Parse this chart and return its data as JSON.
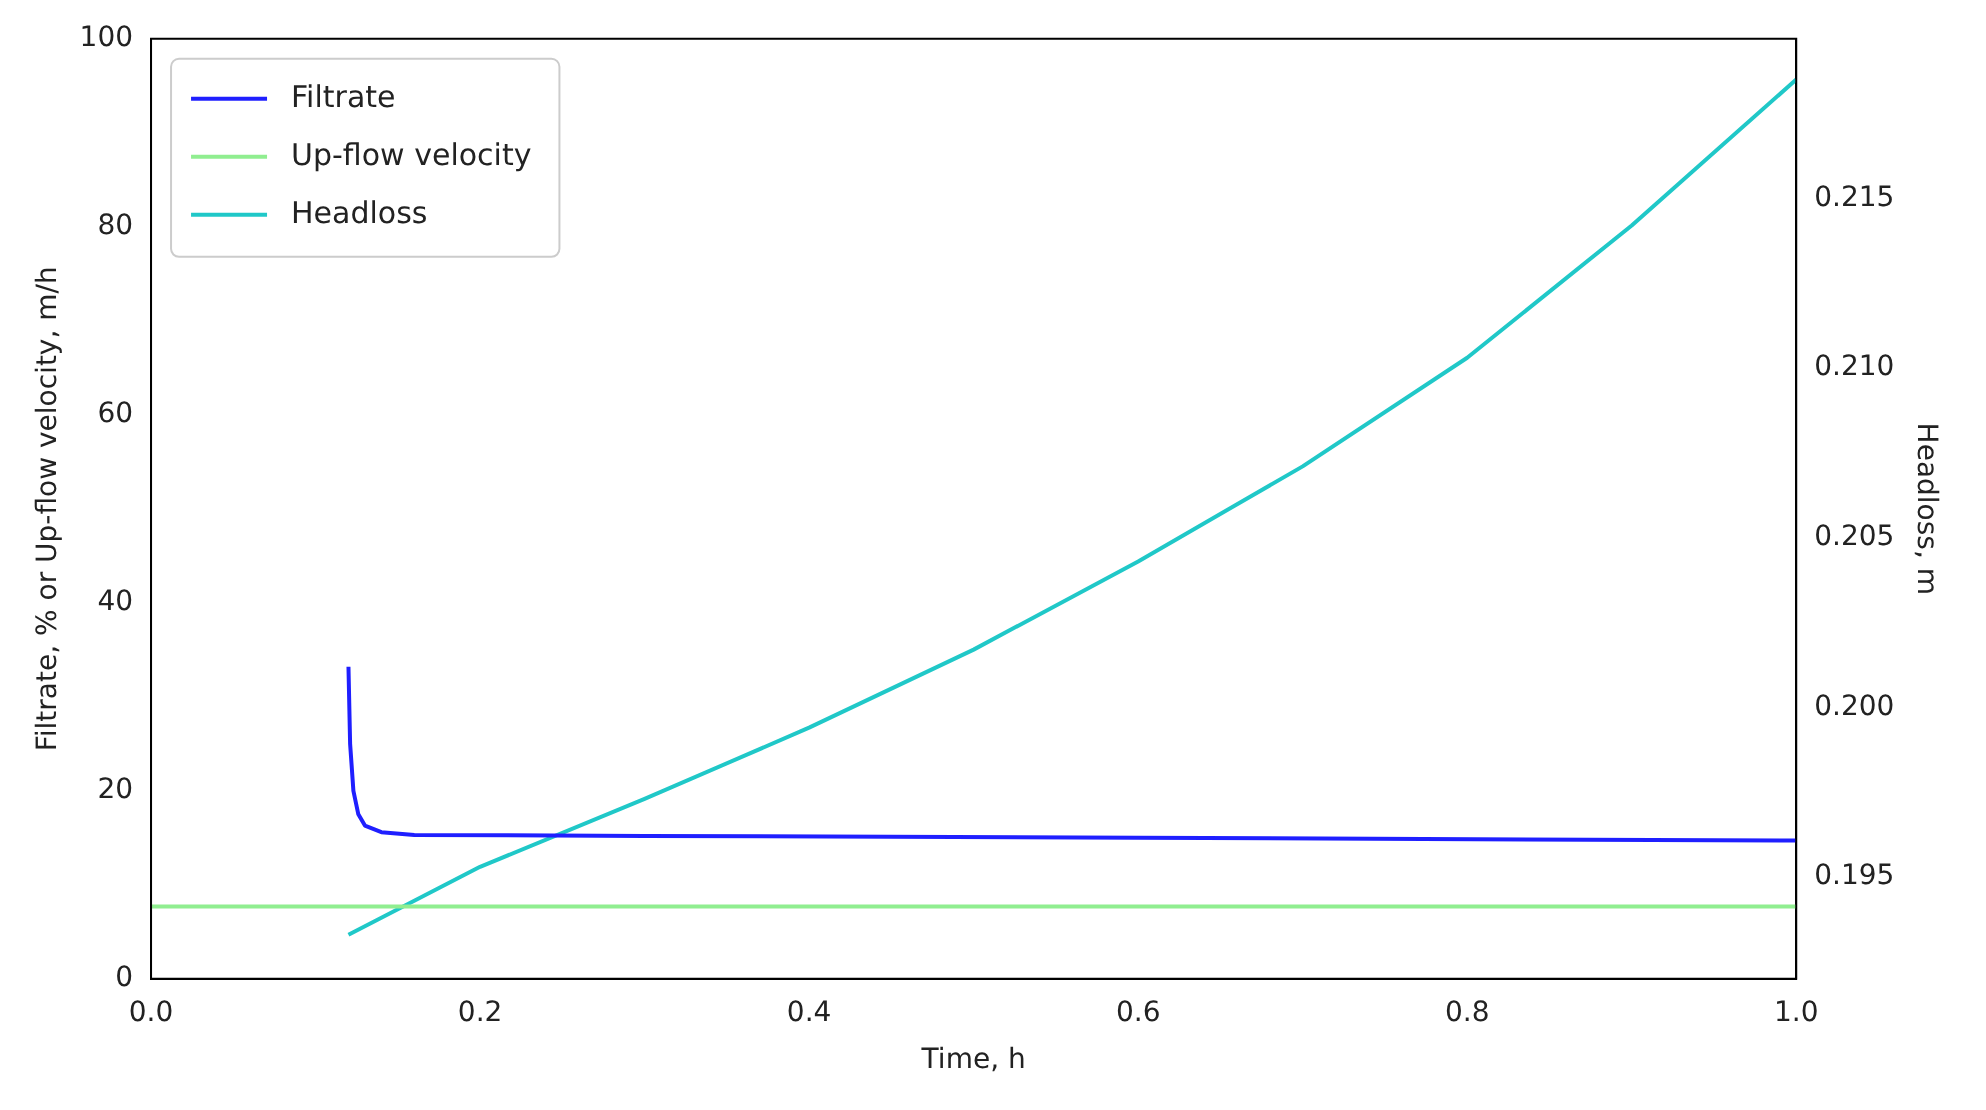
{
  "chart_data": {
    "type": "line",
    "xlabel": "Time, h",
    "ylabel": "Filtrate, % or Up-flow velocity, m/h",
    "y2label": "Headloss, m",
    "xlim": [
      0,
      1
    ],
    "xticks": [
      {
        "value": 0,
        "label": "0.0"
      },
      {
        "value": 0.2,
        "label": "0.2"
      },
      {
        "value": 0.4,
        "label": "0.4"
      },
      {
        "value": 0.6,
        "label": "0.6"
      },
      {
        "value": 0.8,
        "label": "0.8"
      },
      {
        "value": 1,
        "label": "1.0"
      }
    ],
    "ylim": [
      0,
      100
    ],
    "yticks": [
      0,
      20,
      40,
      60,
      80,
      100
    ],
    "y2lim": [
      0.192,
      0.2197
    ],
    "y2ticks": [
      0.195,
      {
        "value": 0.2,
        "label": "0.200"
      },
      0.205,
      {
        "value": 0.21,
        "label": "0.210"
      },
      0.215
    ],
    "legend": "top left",
    "grid": false,
    "marker": "none",
    "line_style": "solid",
    "series": [
      {
        "name": "Filtrate",
        "color": "#1f1fff",
        "x": [
          0.12,
          0.121,
          0.123,
          0.126,
          0.13,
          0.14,
          0.16,
          0.3,
          0.6,
          1.0
        ],
        "values": [
          33.2,
          25,
          20,
          17.5,
          16.3,
          15.6,
          15.3,
          15.2,
          15.0,
          14.7
        ]
      },
      {
        "name": "Up-flow velocity",
        "color": "#90ee90",
        "x": [
          0,
          1
        ],
        "values": [
          7.7,
          7.7
        ]
      },
      {
        "name": "Headloss",
        "color": "#20c8c8",
        "axis": "y2",
        "x": [
          0.12,
          0.2,
          0.3,
          0.4,
          0.5,
          0.6,
          0.7,
          0.8,
          0.9,
          1.0
        ],
        "values": [
          0.1933,
          0.1953,
          0.1973,
          0.1994,
          0.2017,
          0.2043,
          0.2071,
          0.2103,
          0.2142,
          0.2185
        ]
      }
    ]
  }
}
